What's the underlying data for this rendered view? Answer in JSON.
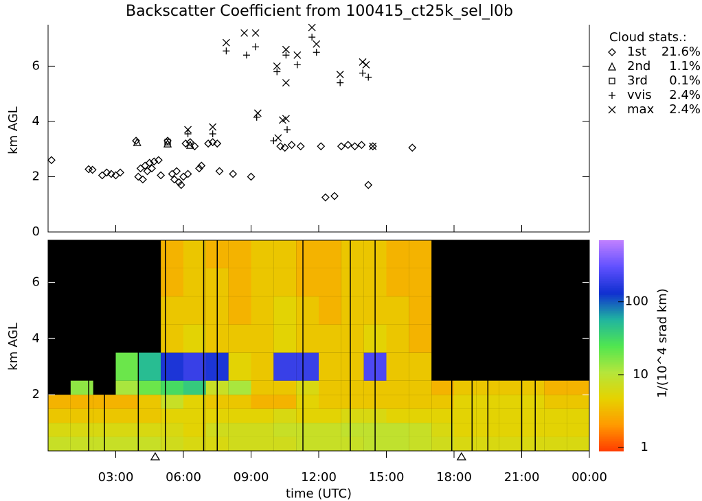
{
  "chart_data": [
    {
      "type": "scatter",
      "title": "Backscatter Coefficient from 100415_ct25k_sel_l0b",
      "ylabel": "km AGL",
      "xlim": [
        0,
        24
      ],
      "ylim": [
        0,
        7.5
      ],
      "yticks": [
        0,
        2,
        4,
        6
      ],
      "legend_title": "Cloud stats.:",
      "series": [
        {
          "name": "1st",
          "stat": "21.6%",
          "marker": "diamond",
          "color": "#000000",
          "x": [
            0.15,
            1.8,
            1.97,
            2.4,
            2.6,
            2.8,
            3.0,
            3.2,
            3.9,
            4.0,
            4.1,
            4.2,
            4.3,
            4.4,
            4.5,
            4.6,
            4.7,
            4.9,
            5.0,
            5.3,
            5.5,
            5.6,
            5.7,
            5.8,
            5.9,
            6.0,
            6.2,
            6.1,
            6.3,
            6.5,
            6.7,
            6.8,
            7.1,
            7.3,
            7.5,
            7.6,
            8.2,
            9.0,
            10.3,
            10.5,
            10.8,
            11.2,
            12.1,
            12.3,
            12.7,
            13.0,
            13.3,
            13.6,
            13.9,
            14.2,
            14.4,
            16.15
          ],
          "values": [
            2.6,
            2.27,
            2.25,
            2.05,
            2.15,
            2.1,
            2.05,
            2.15,
            3.3,
            2.0,
            2.3,
            1.9,
            2.4,
            2.2,
            2.5,
            2.3,
            2.55,
            2.6,
            2.05,
            3.3,
            2.1,
            1.9,
            2.2,
            1.8,
            1.7,
            2.0,
            2.1,
            3.2,
            3.25,
            3.1,
            2.3,
            2.4,
            3.2,
            3.25,
            3.2,
            2.2,
            2.1,
            2.0,
            3.1,
            3.05,
            3.15,
            3.1,
            3.1,
            1.25,
            1.3,
            3.1,
            3.15,
            3.1,
            3.15,
            1.7,
            3.1,
            3.05
          ]
        },
        {
          "name": "2nd",
          "stat": "1.1%",
          "marker": "triangle",
          "color": "#000000",
          "x": [
            3.95,
            5.3,
            6.3
          ],
          "values": [
            3.25,
            3.2,
            3.15
          ]
        },
        {
          "name": "3rd",
          "stat": "0.1%",
          "marker": "square",
          "color": "#000000",
          "x": [
            5.3
          ],
          "values": [
            3.25
          ]
        },
        {
          "name": "vvis",
          "stat": "2.4%",
          "marker": "plus",
          "color": "#000000",
          "x": [
            7.9,
            8.8,
            9.2,
            9.25,
            10.15,
            10.55,
            11.05,
            11.7,
            11.9,
            12.95,
            13.95,
            14.2,
            6.2,
            7.3,
            10.0,
            10.6
          ],
          "values": [
            6.55,
            6.4,
            6.7,
            4.15,
            5.8,
            6.4,
            6.05,
            7.05,
            6.5,
            5.4,
            5.75,
            5.6,
            3.55,
            3.55,
            3.3,
            3.7
          ]
        },
        {
          "name": "max",
          "stat": "2.4%",
          "marker": "cross",
          "color": "#000000",
          "x": [
            7.9,
            8.7,
            9.2,
            9.3,
            10.15,
            10.4,
            10.55,
            10.55,
            10.55,
            11.05,
            11.7,
            11.9,
            12.95,
            13.95,
            14.1,
            6.2,
            7.3,
            10.2,
            14.4
          ],
          "values": [
            6.85,
            7.2,
            7.2,
            4.3,
            6.0,
            4.05,
            4.1,
            6.6,
            5.4,
            6.4,
            7.4,
            6.8,
            5.7,
            6.15,
            6.05,
            3.7,
            3.8,
            3.4,
            3.1
          ]
        }
      ]
    },
    {
      "type": "heatmap",
      "xlabel": "time (UTC)",
      "ylabel": "km AGL",
      "xlim": [
        0,
        24
      ],
      "ylim": [
        0,
        7.5
      ],
      "yticks": [
        2,
        4,
        6
      ],
      "xticks": [
        {
          "value": 3,
          "label": "03:00"
        },
        {
          "value": 6,
          "label": "06:00"
        },
        {
          "value": 9,
          "label": "09:00"
        },
        {
          "value": 12,
          "label": "12:00"
        },
        {
          "value": 15,
          "label": "15:00"
        },
        {
          "value": 18,
          "label": "18:00"
        },
        {
          "value": 21,
          "label": "21:00"
        },
        {
          "value": 24,
          "label": "00:00"
        }
      ],
      "x_edges": [
        0,
        1,
        2,
        3,
        4,
        5,
        6,
        7,
        8,
        9,
        10,
        11,
        12,
        13,
        14,
        15,
        16,
        17,
        18,
        19,
        20,
        21,
        22,
        23,
        24
      ],
      "y_edges": [
        0,
        0.5,
        1,
        1.5,
        2,
        2.5,
        3.5,
        4.5,
        5.5,
        6.5,
        7.5
      ],
      "values": [
        [
          8,
          8,
          8,
          8,
          8,
          7,
          6,
          6,
          7,
          7,
          7,
          8,
          8,
          8,
          9,
          9,
          8,
          7,
          6,
          6,
          6,
          6,
          6,
          6
        ],
        [
          6,
          6,
          6,
          6,
          6,
          6,
          5,
          7,
          7,
          7,
          8,
          8,
          8,
          9,
          9,
          9,
          8,
          6,
          5,
          5,
          5,
          5,
          5,
          5
        ],
        [
          4,
          4,
          4,
          4,
          4,
          5,
          5,
          5,
          5,
          5,
          6,
          5,
          5,
          6,
          6,
          5,
          5,
          5,
          5,
          5,
          5,
          5,
          5,
          5
        ],
        [
          3,
          3,
          3,
          3,
          4,
          8,
          5,
          4,
          4,
          3,
          3,
          5,
          4,
          4,
          4,
          4,
          4,
          4,
          5,
          5,
          5,
          5,
          4,
          4
        ],
        [
          null,
          15,
          null,
          12,
          20,
          30,
          40,
          8,
          12,
          4,
          4,
          6,
          4,
          4,
          4,
          4,
          4,
          3,
          4,
          4,
          4,
          4,
          3,
          3
        ],
        [
          null,
          null,
          null,
          20,
          50,
          150,
          200,
          150,
          5,
          4,
          200,
          200,
          4,
          4,
          250,
          4,
          4,
          null,
          null,
          null,
          null,
          null,
          null,
          null
        ],
        [
          null,
          null,
          null,
          null,
          null,
          4,
          5,
          4,
          4,
          4,
          5,
          4,
          4,
          4,
          5,
          4,
          3,
          null,
          null,
          null,
          null,
          null,
          null,
          null
        ],
        [
          null,
          null,
          null,
          null,
          null,
          4,
          4,
          4,
          3,
          4,
          5,
          4,
          3,
          4,
          4,
          4,
          3,
          null,
          null,
          null,
          null,
          null,
          null,
          null
        ],
        [
          null,
          null,
          null,
          null,
          null,
          3,
          4,
          4,
          3,
          4,
          4,
          3,
          3,
          4,
          4,
          3,
          3,
          null,
          null,
          null,
          null,
          null,
          null,
          null
        ],
        [
          null,
          null,
          null,
          null,
          null,
          3,
          4,
          3,
          3,
          4,
          4,
          3,
          3,
          4,
          4,
          3,
          3,
          null,
          null,
          null,
          null,
          null,
          null,
          null
        ]
      ],
      "colorbar_label": "1/(10^4 srad km)",
      "clim": [
        0.9,
        700
      ],
      "cticks": [
        1,
        10,
        100
      ],
      "colormap": [
        "#ff3c00",
        "#ff9a00",
        "#e6d200",
        "#b4e63c",
        "#50e650",
        "#20b4a0",
        "#1030d0",
        "#6050ff",
        "#c080ff"
      ],
      "gaps_x": [
        1.8,
        2.5,
        4.0,
        5.2,
        6.9,
        7.5,
        11.3,
        13.4,
        14.5,
        17.9,
        18.8,
        19.5,
        21.0,
        21.6
      ],
      "markers_x": [
        4.75,
        18.33
      ]
    }
  ]
}
